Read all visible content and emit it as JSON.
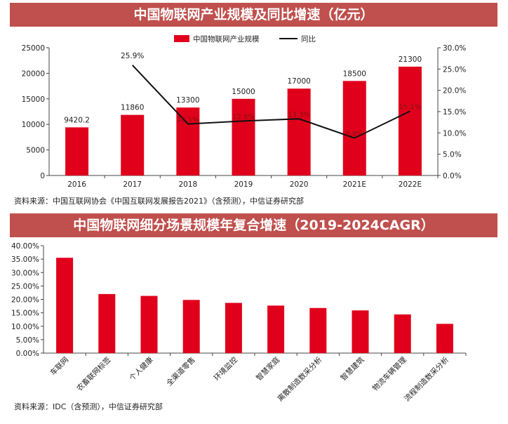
{
  "chart1": {
    "title": "中国物联网产业规模及同比增速（亿元）",
    "source": "资料来源：中国互联网协会《中国互联网发展报告2021》（含预测），中信证券研究部"
  },
  "chart2": {
    "title": "中国物联网细分场景规模年复合增速（2019-2024CAGR）",
    "source": "资料来源：IDC（含预测），中信证券研究部"
  },
  "colors": {
    "bar": "#e0001b",
    "line": "#111111",
    "banner": "#c0504d"
  },
  "chart_data": [
    {
      "type": "bar",
      "title": "中国物联网产业规模及同比增速（亿元）",
      "categories": [
        "2016",
        "2017",
        "2018",
        "2019",
        "2020",
        "2021E",
        "2022E"
      ],
      "series": [
        {
          "name": "中国物联网产业规模",
          "type": "bar",
          "axis": "left",
          "values": [
            9420.2,
            11860,
            13300,
            15000,
            17000,
            18500,
            21300
          ],
          "labels": [
            "9420.2",
            "11860",
            "13300",
            "15000",
            "17000",
            "18500",
            "21300"
          ]
        },
        {
          "name": "同比",
          "type": "line",
          "axis": "right",
          "values": [
            null,
            25.9,
            12.1,
            12.8,
            13.3,
            8.8,
            15.1
          ],
          "labels": [
            "",
            "25.9%",
            "12.1%",
            "12.8%",
            "13.3%",
            "8.8%",
            "15.1%"
          ]
        }
      ],
      "ylim": [
        0,
        25000
      ],
      "yticks": [
        "0",
        "5000",
        "10000",
        "15000",
        "20000",
        "25000"
      ],
      "y2lim": [
        0,
        30
      ],
      "y2ticks": [
        "0.0%",
        "5.0%",
        "10.0%",
        "15.0%",
        "20.0%",
        "25.0%",
        "30.0%"
      ],
      "legend": "top-center",
      "grid": false
    },
    {
      "type": "bar",
      "title": "中国物联网细分场景规模年复合增速（2019-2024CAGR）",
      "categories": [
        "车联网",
        "农畜联网标签",
        "个人健康",
        "全渠道零售",
        "环境监控",
        "智慧家庭",
        "离散制造数采分析",
        "智慧建筑",
        "物流车辆管理",
        "流程制造数采分析"
      ],
      "values": [
        35.5,
        22,
        21.3,
        19.8,
        18.7,
        17.7,
        16.8,
        15.9,
        14.4,
        10.9
      ],
      "ylim": [
        0,
        40
      ],
      "yticks": [
        "0.00%",
        "5.00%",
        "10.00%",
        "15.00%",
        "20.00%",
        "25.00%",
        "30.00%",
        "35.00%",
        "40.00%"
      ],
      "grid": false
    }
  ]
}
